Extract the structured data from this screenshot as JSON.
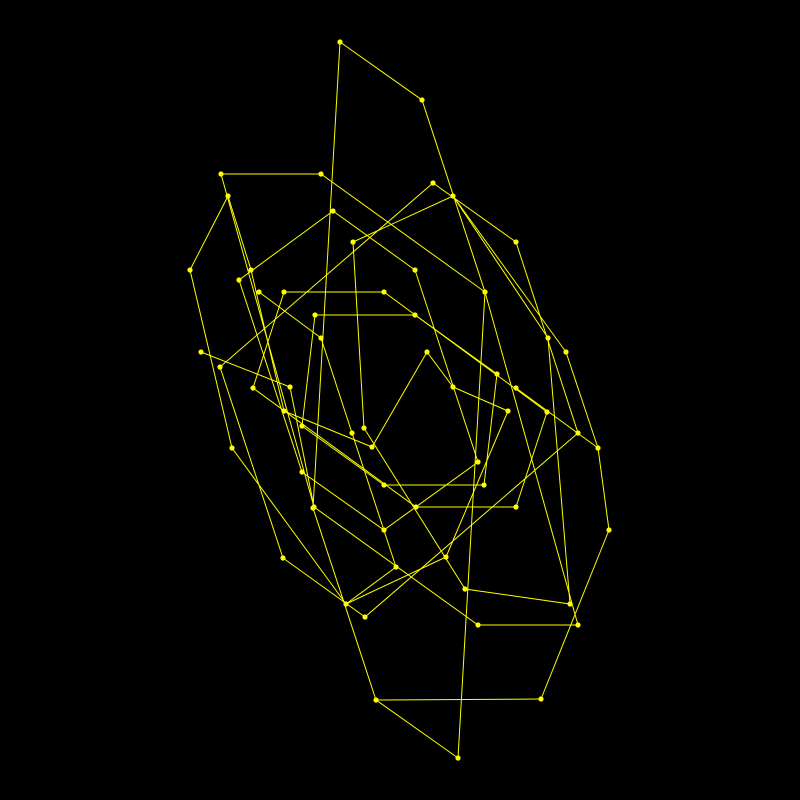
{
  "background_color": "#000000",
  "stroke_color": "#ffff00",
  "vertex_color": "#ffff00",
  "shape": "hexagon",
  "polygon_count": 7,
  "vertices_per_polygon": 6
}
